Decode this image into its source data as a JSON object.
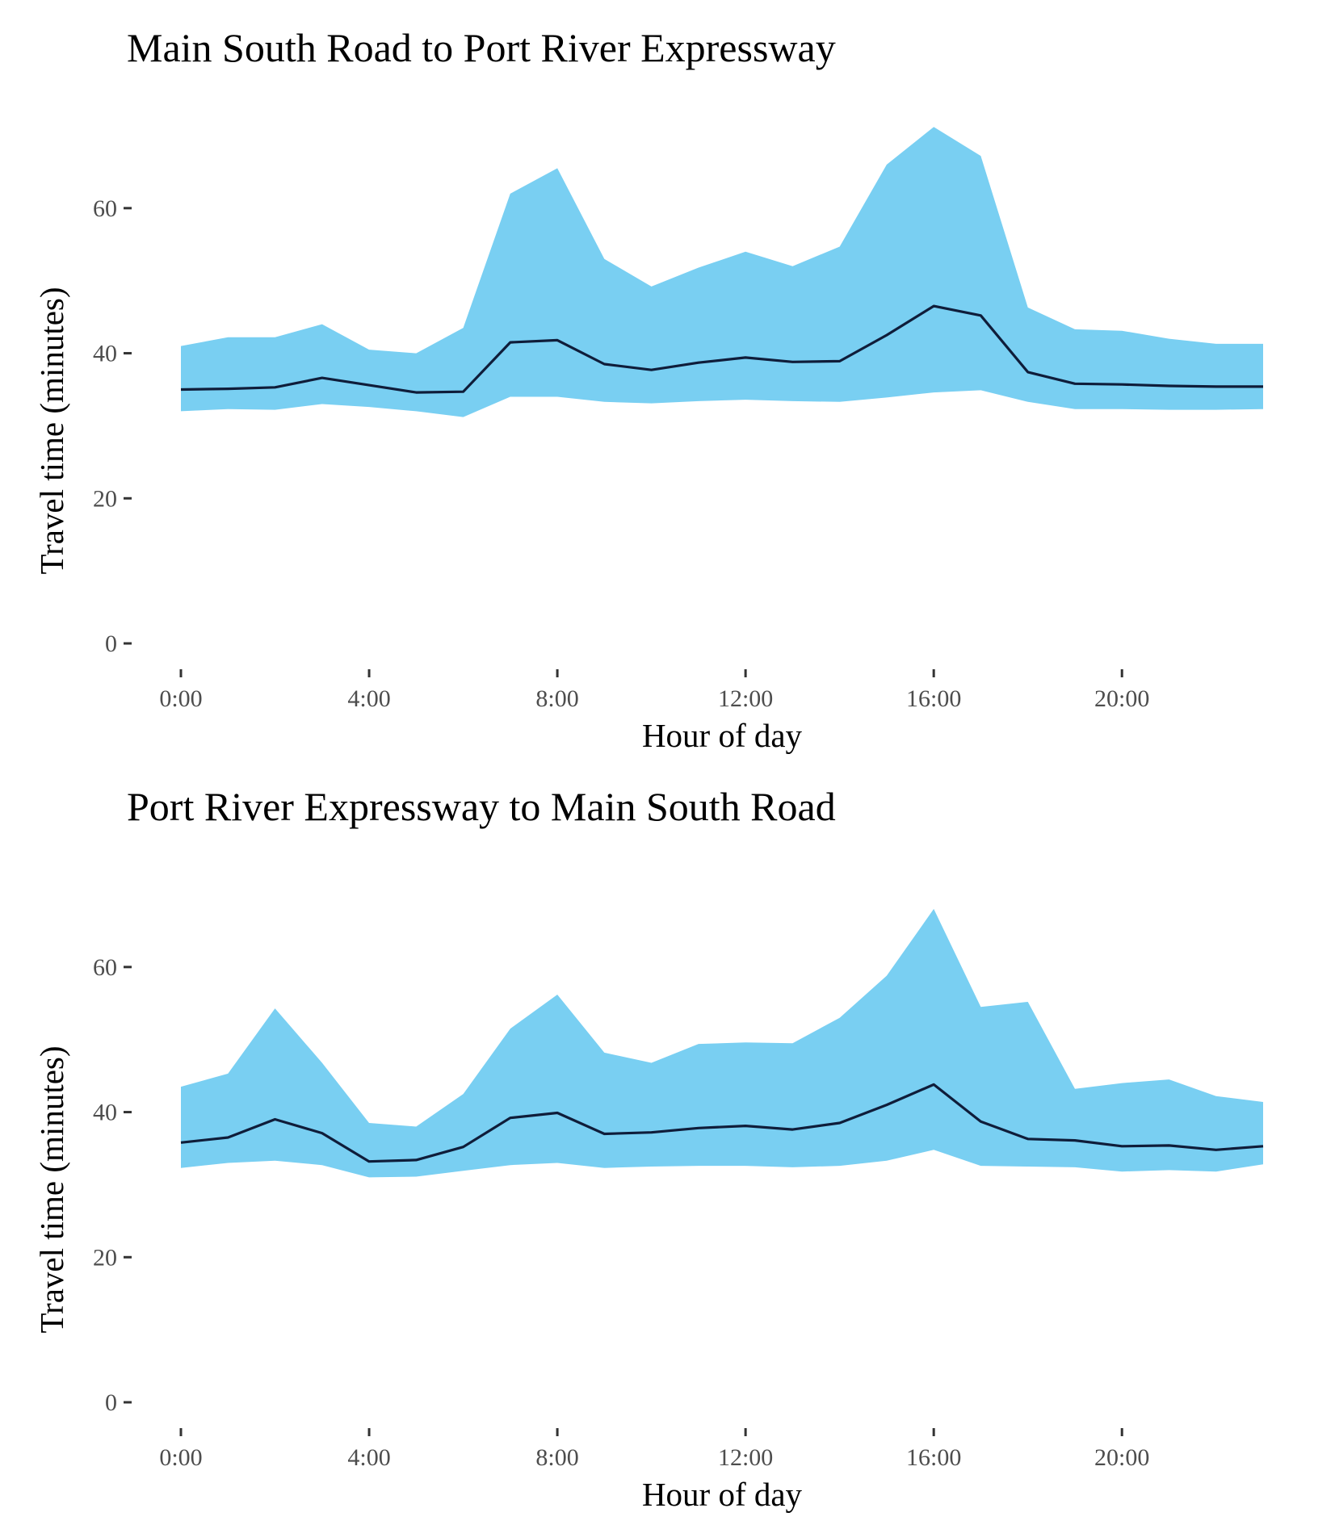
{
  "colors": {
    "band": "#79CFF2",
    "median_line": "#0F1D3A",
    "tick": "#333333",
    "tick_label": "#4d4d4d"
  },
  "chart_data": [
    {
      "type": "area",
      "title": "Main South Road to Port River Expressway",
      "xlabel": "Hour of day",
      "ylabel": "Travel time (minutes)",
      "xlim": [
        0,
        23
      ],
      "ylim": [
        0,
        72
      ],
      "x_ticks": [
        0,
        4,
        8,
        12,
        16,
        20
      ],
      "x_tick_labels": [
        "0:00",
        "4:00",
        "8:00",
        "12:00",
        "16:00",
        "20:00"
      ],
      "y_ticks": [
        0,
        20,
        40,
        60
      ],
      "y_tick_labels": [
        "0",
        "20",
        "40",
        "60"
      ],
      "grid": false,
      "x": [
        0,
        1,
        2,
        3,
        4,
        5,
        6,
        7,
        8,
        9,
        10,
        11,
        12,
        13,
        14,
        15,
        16,
        17,
        18,
        19,
        20,
        21,
        22,
        23
      ],
      "series": [
        {
          "role": "upper",
          "values": [
            41.0,
            42.2,
            42.2,
            44.0,
            40.5,
            40.0,
            43.5,
            62.0,
            65.5,
            53.0,
            49.2,
            51.8,
            54.0,
            52.0,
            54.7,
            66.0,
            71.2,
            67.2,
            46.3,
            43.3,
            43.1,
            42.0,
            41.3,
            41.3
          ]
        },
        {
          "role": "median",
          "values": [
            35.0,
            35.1,
            35.3,
            36.6,
            35.6,
            34.6,
            34.7,
            41.5,
            41.8,
            38.5,
            37.7,
            38.7,
            39.4,
            38.8,
            38.9,
            42.5,
            46.5,
            45.2,
            37.4,
            35.8,
            35.7,
            35.5,
            35.4,
            35.4
          ]
        },
        {
          "role": "lower",
          "values": [
            32.0,
            32.3,
            32.2,
            33.0,
            32.6,
            32.0,
            31.2,
            34.0,
            34.0,
            33.3,
            33.1,
            33.4,
            33.6,
            33.4,
            33.3,
            33.9,
            34.6,
            34.9,
            33.3,
            32.3,
            32.3,
            32.2,
            32.2,
            32.3
          ]
        }
      ]
    },
    {
      "type": "area",
      "title": "Port River Expressway to Main South Road",
      "xlabel": "Hour of day",
      "ylabel": "Travel time (minutes)",
      "xlim": [
        0,
        23
      ],
      "ylim": [
        0,
        72
      ],
      "x_ticks": [
        0,
        4,
        8,
        12,
        16,
        20
      ],
      "x_tick_labels": [
        "0:00",
        "4:00",
        "8:00",
        "12:00",
        "16:00",
        "20:00"
      ],
      "y_ticks": [
        0,
        20,
        40,
        60
      ],
      "y_tick_labels": [
        "0",
        "20",
        "40",
        "60"
      ],
      "grid": false,
      "x": [
        0,
        1,
        2,
        3,
        4,
        5,
        6,
        7,
        8,
        9,
        10,
        11,
        12,
        13,
        14,
        15,
        16,
        17,
        18,
        19,
        20,
        21,
        22,
        23
      ],
      "series": [
        {
          "role": "upper",
          "values": [
            43.5,
            45.3,
            54.3,
            46.8,
            38.5,
            38.0,
            42.5,
            51.5,
            56.2,
            48.2,
            46.8,
            49.4,
            49.6,
            49.5,
            53.0,
            58.8,
            68.0,
            54.5,
            55.2,
            43.2,
            44.0,
            44.5,
            42.2,
            41.4
          ]
        },
        {
          "role": "median",
          "values": [
            35.8,
            36.5,
            39.0,
            37.1,
            33.2,
            33.4,
            35.2,
            39.2,
            39.9,
            37.0,
            37.2,
            37.8,
            38.1,
            37.6,
            38.5,
            41.0,
            43.8,
            38.7,
            36.3,
            36.1,
            35.3,
            35.4,
            34.8,
            35.3
          ]
        },
        {
          "role": "lower",
          "values": [
            32.3,
            33.0,
            33.3,
            32.7,
            31.0,
            31.1,
            31.9,
            32.7,
            33.0,
            32.3,
            32.5,
            32.6,
            32.6,
            32.4,
            32.6,
            33.3,
            34.8,
            32.6,
            32.5,
            32.4,
            31.8,
            32.0,
            31.8,
            32.8
          ]
        }
      ]
    }
  ]
}
